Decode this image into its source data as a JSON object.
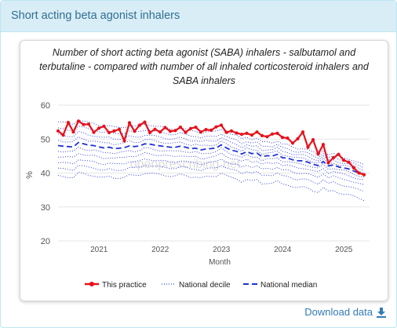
{
  "panel": {
    "title": "Short acting beta agonist inhalers"
  },
  "download": {
    "label": "Download data"
  },
  "watermark": "openprescribing.net",
  "chart_data": {
    "type": "line",
    "title": "Number of short acting beta agonist (SABA) inhalers - salbutamol and terbutaline - compared with number of all inhaled corticosteroid inhalers and SABA inhalers",
    "title_lines": [
      "Number of short acting beta agonist (SABA) inhalers - salbutamol and",
      "terbutaline - compared with number of all inhaled corticosteroid inhalers and",
      "SABA inhalers"
    ],
    "xlabel": "Month",
    "ylabel": "%",
    "ylim": [
      20,
      60
    ],
    "yticks": [
      20,
      30,
      40,
      50,
      60
    ],
    "xticks": [
      {
        "label": "2021",
        "x": 2021
      },
      {
        "label": "2022",
        "x": 2022
      },
      {
        "label": "2023",
        "x": 2023
      },
      {
        "label": "2024",
        "x": 2024
      },
      {
        "label": "2025",
        "x": 2025
      }
    ],
    "xlim": [
      2020.33,
      2025.42
    ],
    "legend_position": "bottom",
    "x_start": 2020.33,
    "x_step": 0.08333,
    "series": [
      {
        "name": "This practice",
        "color": "#e8101a",
        "style": "solid-markers",
        "values": [
          52.4,
          51.2,
          54.9,
          52.1,
          55.3,
          54.3,
          54.4,
          52.0,
          53.2,
          53.8,
          51.9,
          52.4,
          52.9,
          49.5,
          54.8,
          52.3,
          54.1,
          55.0,
          51.9,
          52.9,
          52.1,
          53.4,
          52.3,
          52.5,
          53.5,
          52.0,
          53.1,
          53.5,
          52.1,
          52.8,
          52.6,
          53.6,
          54.1,
          52.0,
          52.4,
          51.8,
          51.4,
          51.7,
          51.2,
          52.1,
          51.0,
          50.7,
          51.5,
          51.7,
          50.5,
          50.3,
          48.8,
          50.1,
          52.1,
          47.6,
          49.8,
          45.6,
          48.4,
          43.0,
          44.5,
          45.5,
          43.8,
          43.2,
          41.5,
          40.0,
          39.5
        ]
      },
      {
        "name": "National median",
        "color": "#1f31d8",
        "style": "dashed",
        "values": [
          48.1,
          47.9,
          47.8,
          47.7,
          49.0,
          48.6,
          48.2,
          48.1,
          47.7,
          47.4,
          47.6,
          47.2,
          47.3,
          47.5,
          48.0,
          47.8,
          48.0,
          48.6,
          48.5,
          48.2,
          48.0,
          47.8,
          47.6,
          47.6,
          47.9,
          47.6,
          47.2,
          47.3,
          46.8,
          47.1,
          47.2,
          47.4,
          48.3,
          47.4,
          46.7,
          46.4,
          45.6,
          46.3,
          45.7,
          45.9,
          44.8,
          45.1,
          45.0,
          45.5,
          44.5,
          44.4,
          43.9,
          43.6,
          43.6,
          43.2,
          42.6,
          42.2,
          43.4,
          42.1,
          42.4,
          41.8,
          41.5,
          41.2,
          40.6,
          40.0,
          39.6
        ]
      }
    ],
    "deciles": {
      "name": "National decile",
      "color": "#3444e0",
      "style": "dotted",
      "offsets": [
        7.0,
        5.0,
        3.2,
        1.5,
        -1.5,
        -3.2,
        -5.0,
        -6.8,
        -9.0
      ],
      "offsets_end": [
        2.8,
        2.0,
        1.3,
        0.6,
        -0.8,
        -1.8,
        -3.2,
        -5.0,
        -7.5
      ]
    },
    "legend": [
      {
        "label": "This practice"
      },
      {
        "label": "National decile"
      },
      {
        "label": "National median"
      }
    ]
  }
}
